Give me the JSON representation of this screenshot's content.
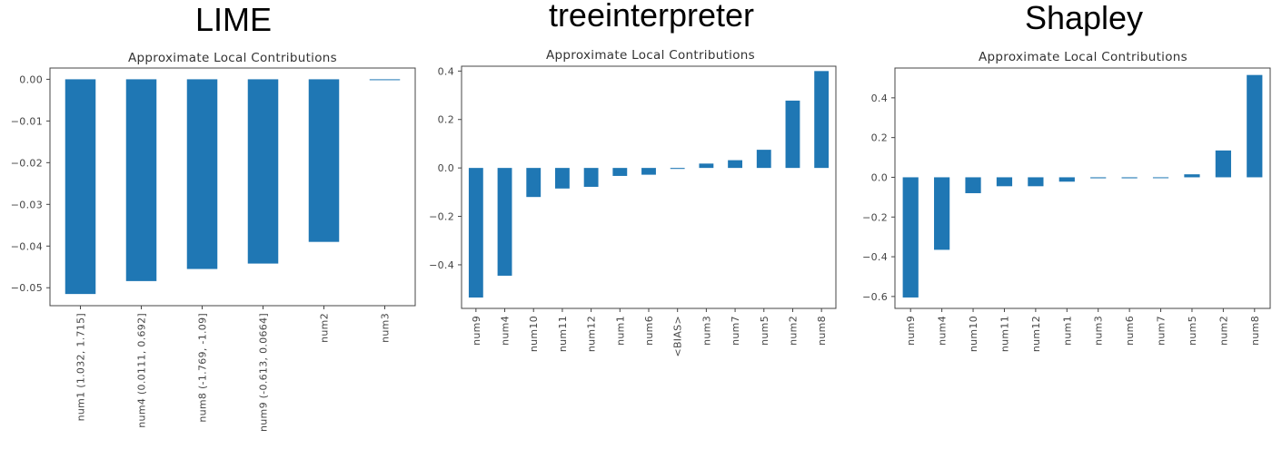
{
  "panels": [
    {
      "heading": "LIME",
      "chart_data": {
        "type": "bar",
        "title": "Approximate Local Contributions",
        "xlabel": "",
        "ylabel": "",
        "categories": [
          "num1 (1.032, 1.715]",
          "num4 (0.0111, 0.692]",
          "num8 (-1.769, -1.09]",
          "num9 (-0.613, 0.0664]",
          "num2",
          "num3"
        ],
        "values": [
          -0.0515,
          -0.0484,
          -0.0455,
          -0.0442,
          -0.039,
          -0.0001
        ],
        "ylim": [
          -0.0543,
          0.0027
        ],
        "yticks": [
          0.0,
          -0.01,
          -0.02,
          -0.03,
          -0.04,
          -0.05
        ],
        "ytick_labels": [
          "0.00",
          "−0.01",
          "−0.02",
          "−0.03",
          "−0.04",
          "−0.05"
        ],
        "bar_color": "#1f77b4",
        "grid": false,
        "legend": "none"
      }
    },
    {
      "heading": "treeinterpreter",
      "chart_data": {
        "type": "bar",
        "title": "Approximate Local Contributions",
        "xlabel": "",
        "ylabel": "",
        "categories": [
          "num9",
          "num4",
          "num10",
          "num11",
          "num12",
          "num1",
          "num6",
          "<BIAS>",
          "num3",
          "num7",
          "num5",
          "num2",
          "num8"
        ],
        "values": [
          -0.535,
          -0.445,
          -0.12,
          -0.085,
          -0.078,
          -0.033,
          -0.028,
          -0.004,
          0.018,
          0.032,
          0.075,
          0.278,
          0.4
        ],
        "ylim": [
          -0.58,
          0.42
        ],
        "yticks": [
          0.4,
          0.2,
          0.0,
          -0.2,
          -0.4
        ],
        "ytick_labels": [
          "0.4",
          "0.2",
          "0.0",
          "−0.2",
          "−0.4"
        ],
        "bar_color": "#1f77b4",
        "grid": false,
        "legend": "none"
      }
    },
    {
      "heading": "Shapley",
      "chart_data": {
        "type": "bar",
        "title": "Approximate Local Contributions",
        "xlabel": "",
        "ylabel": "",
        "categories": [
          "num9",
          "num4",
          "num10",
          "num11",
          "num12",
          "num1",
          "num3",
          "num6",
          "num7",
          "num5",
          "num2",
          "num8"
        ],
        "values": [
          -0.605,
          -0.365,
          -0.08,
          -0.045,
          -0.045,
          -0.022,
          -0.005,
          -0.005,
          0.0,
          0.015,
          0.135,
          0.515
        ],
        "ylim": [
          -0.66,
          0.55
        ],
        "yticks": [
          0.4,
          0.2,
          0.0,
          -0.2,
          -0.4,
          -0.6
        ],
        "ytick_labels": [
          "0.4",
          "0.2",
          "0.0",
          "−0.2",
          "−0.4",
          "−0.6"
        ],
        "bar_color": "#1f77b4",
        "grid": false,
        "legend": "none"
      }
    }
  ]
}
